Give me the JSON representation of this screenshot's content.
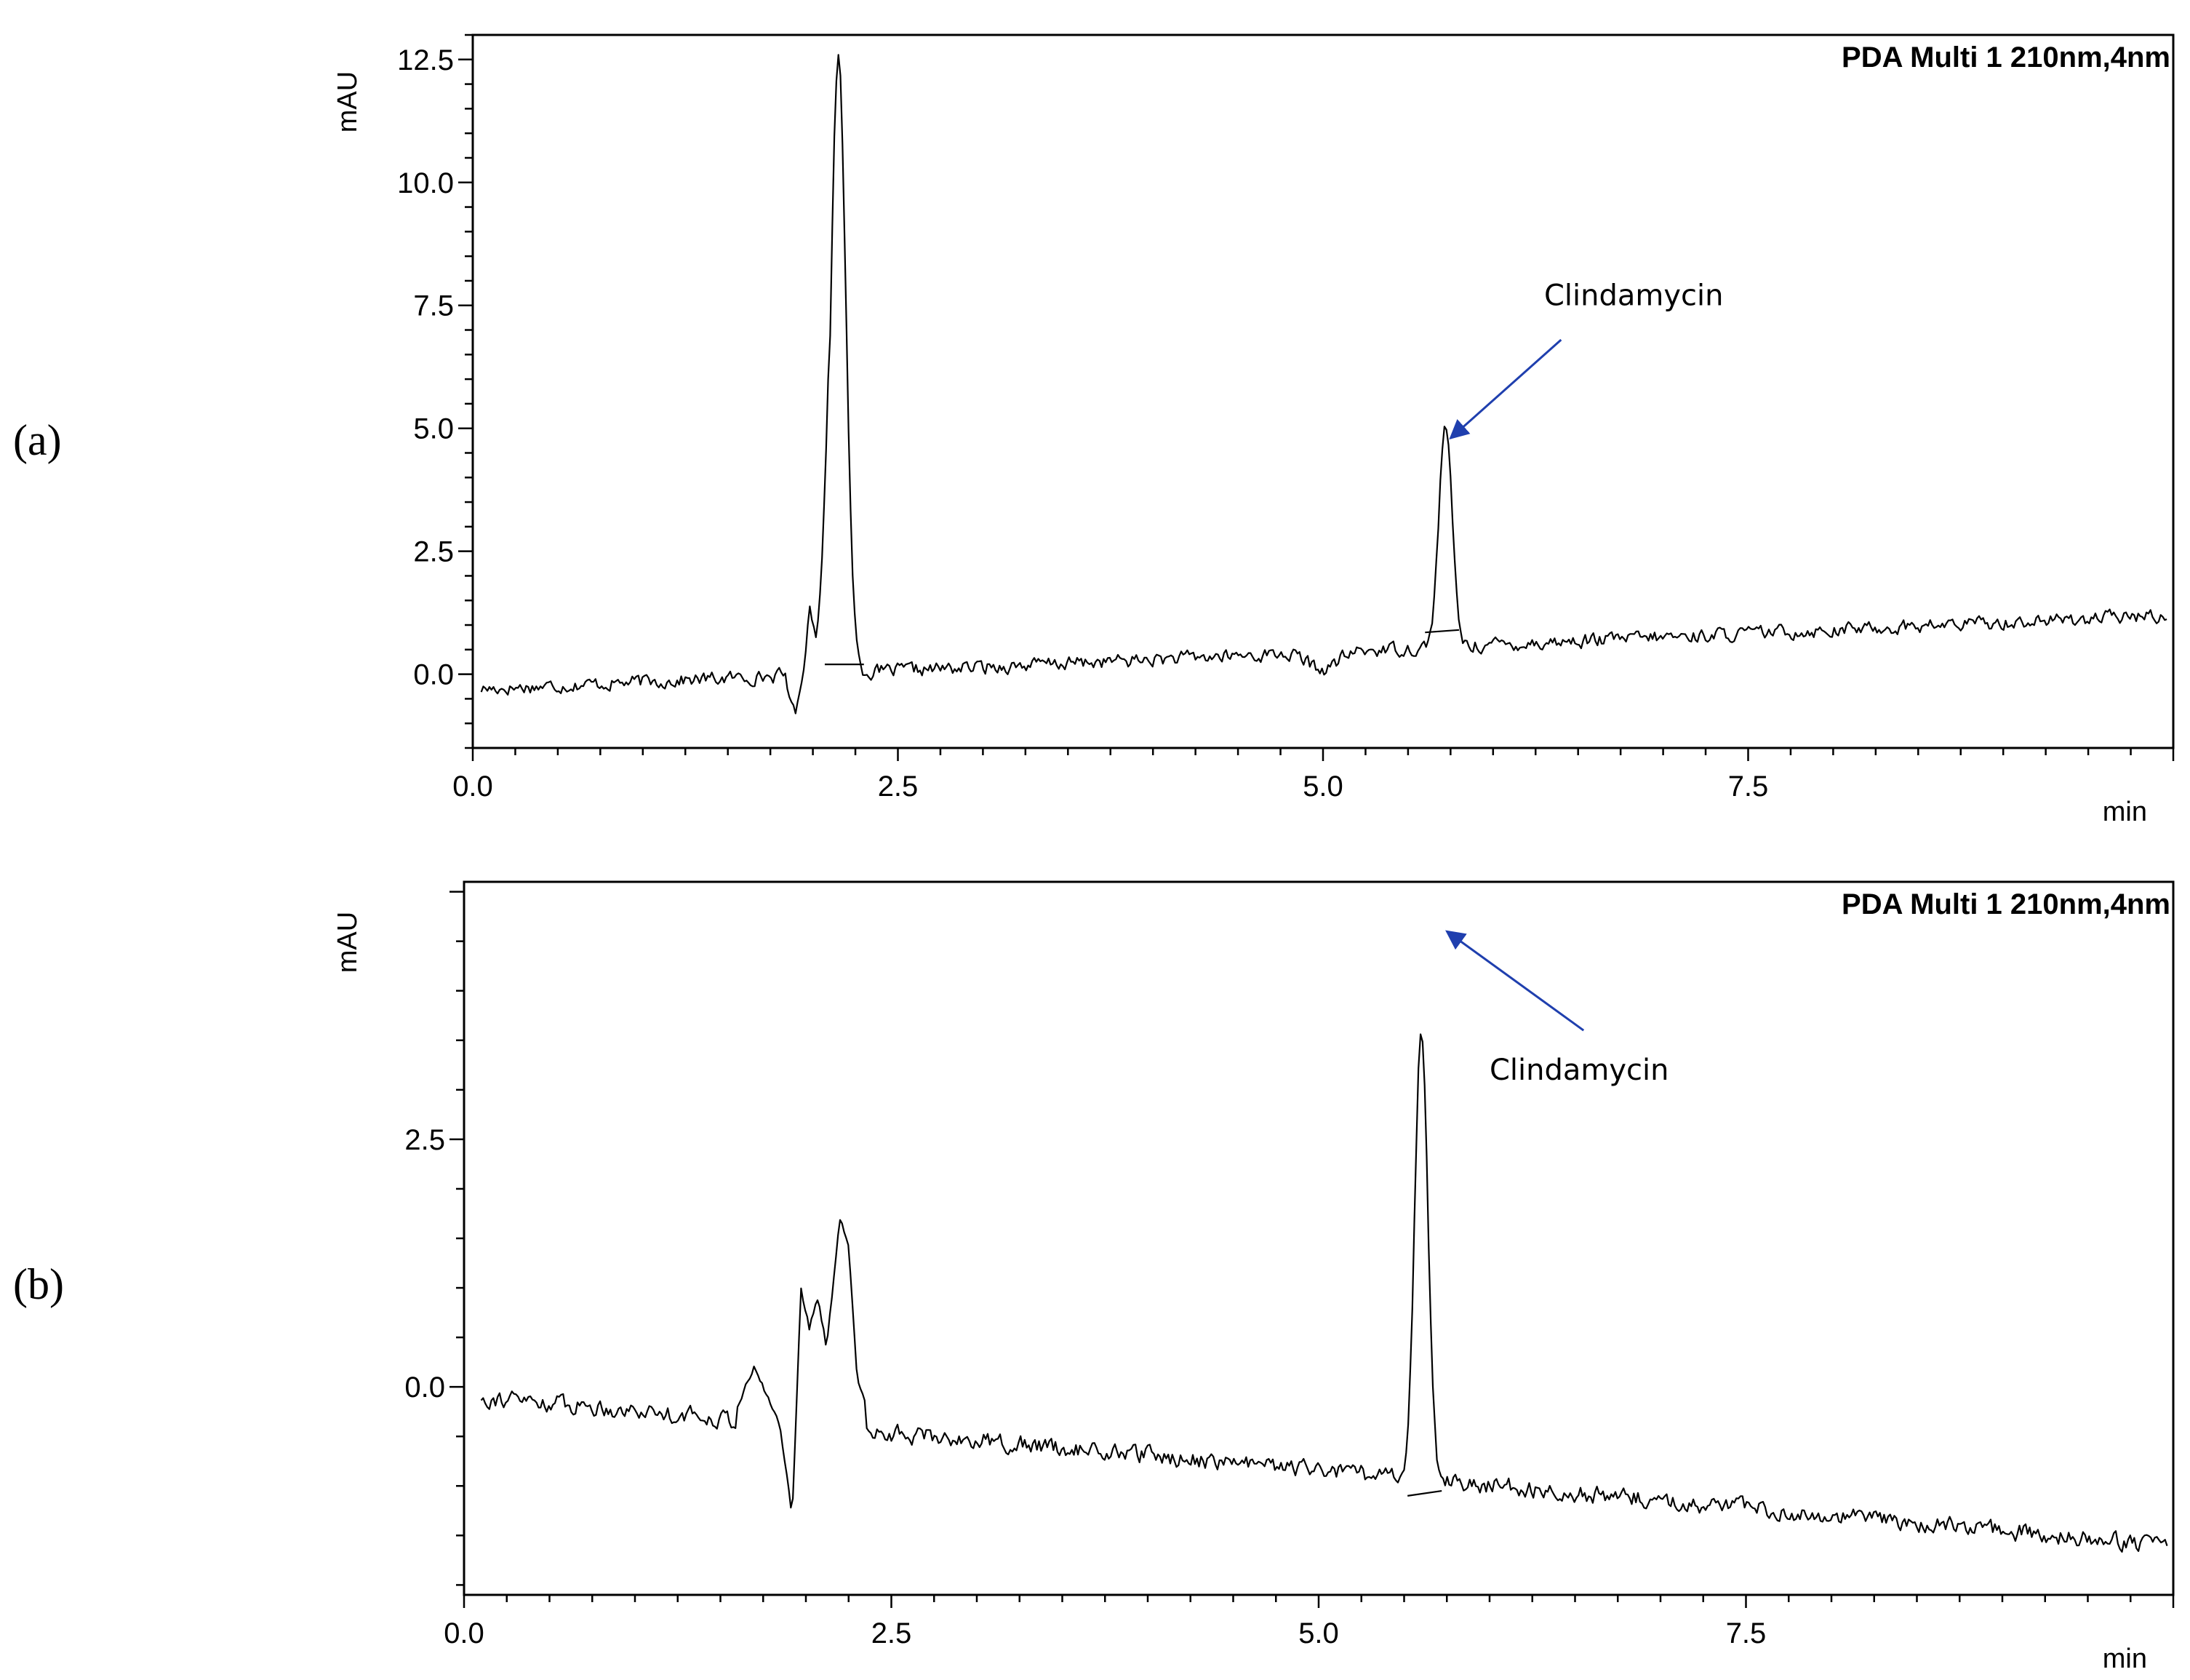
{
  "chart_data": [
    {
      "type": "line",
      "panel_label": "(a)",
      "detector_label": "PDA Multi 1 210nm,4nm",
      "xlabel": "min",
      "ylabel": "mAU",
      "xlim": [
        0,
        10
      ],
      "ylim": [
        -1.5,
        13.0
      ],
      "x_ticks": [
        0.0,
        2.5,
        5.0,
        7.5
      ],
      "x_tick_labels": [
        "0.0",
        "2.5",
        "5.0",
        "7.5"
      ],
      "y_ticks": [
        0.0,
        2.5,
        5.0,
        7.5,
        10.0,
        12.5
      ],
      "y_tick_labels": [
        "0.0",
        "2.5",
        "5.0",
        "7.5",
        "10.0",
        "12.5"
      ],
      "baseline": {
        "start": 0.05,
        "end": 9.97,
        "y_start": -0.3,
        "y_end": 1.2,
        "noise": 0.22,
        "dip_x": 5.0,
        "dip_depth": 0.35
      },
      "disturbance": [
        {
          "x": 1.85,
          "y": -0.3
        },
        {
          "x": 1.9,
          "y": -0.8
        },
        {
          "x": 1.95,
          "y": 0.2
        },
        {
          "x": 1.98,
          "y": 1.4
        },
        {
          "x": 2.02,
          "y": 0.6
        },
        {
          "x": 2.07,
          "y": 1.5
        },
        {
          "x": 2.1,
          "y": 0.8
        }
      ],
      "peaks": [
        {
          "rt": 2.15,
          "height": 12.5,
          "start": 2.07,
          "end": 2.3,
          "base_start": 0.2,
          "base_end": 0.2
        },
        {
          "rt": 5.72,
          "height": 4.5,
          "start": 5.6,
          "end": 5.8,
          "base_start": 0.85,
          "base_end": 0.9
        }
      ],
      "annotation": {
        "text": "Clindamycin",
        "x": 6.3,
        "y": 7.5,
        "arrow_from": [
          6.4,
          6.8
        ],
        "arrow_to": [
          5.75,
          4.8
        ]
      }
    },
    {
      "type": "line",
      "panel_label": "(b)",
      "detector_label": "PDA Multi 1 210nm,4nm",
      "xlabel": "min",
      "ylabel": "mAU",
      "xlim": [
        0,
        10
      ],
      "ylim": [
        -2.1,
        5.1
      ],
      "x_ticks": [
        0.0,
        2.5,
        5.0,
        7.5
      ],
      "x_tick_labels": [
        "0.0",
        "2.5",
        "5.0",
        "7.5"
      ],
      "y_ticks": [
        0.0,
        2.5
      ],
      "y_tick_labels": [
        "0.0",
        "2.5"
      ],
      "baseline": {
        "start": 0.1,
        "end": 9.97,
        "y_start": -0.1,
        "y_end": -1.6,
        "noise": 0.14,
        "dip_x": 5.0,
        "dip_depth": 0
      },
      "disturbance": [
        {
          "x": 1.6,
          "y": -0.2
        },
        {
          "x": 1.7,
          "y": 0.2
        },
        {
          "x": 1.85,
          "y": -0.4
        },
        {
          "x": 1.92,
          "y": -1.3
        },
        {
          "x": 1.97,
          "y": 1.0
        },
        {
          "x": 2.02,
          "y": 0.6
        },
        {
          "x": 2.07,
          "y": 0.9
        },
        {
          "x": 2.12,
          "y": 0.4
        },
        {
          "x": 2.2,
          "y": 1.7
        },
        {
          "x": 2.25,
          "y": 1.4
        },
        {
          "x": 2.3,
          "y": 0.1
        },
        {
          "x": 2.35,
          "y": -0.2
        }
      ],
      "peaks": [
        {
          "rt": 5.6,
          "height": 4.5,
          "start": 5.52,
          "end": 5.72,
          "base_start": -1.1,
          "base_end": -1.05
        }
      ],
      "annotation": {
        "text": "Clindamycin",
        "x": 6.0,
        "y": 3.1,
        "arrow_from": [
          6.55,
          3.6
        ],
        "arrow_to": [
          5.75,
          4.6
        ]
      }
    }
  ]
}
